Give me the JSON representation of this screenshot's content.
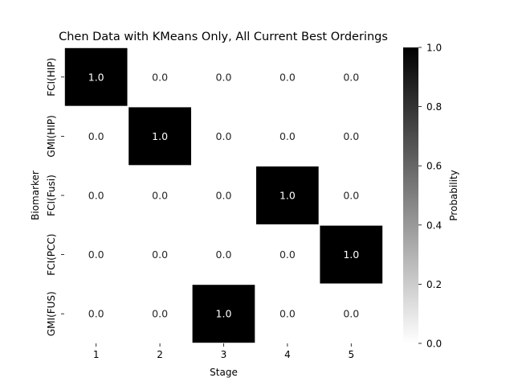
{
  "chart_data": {
    "type": "heatmap",
    "title": "Chen Data with KMeans Only, All Current Best Orderings",
    "xlabel": "Stage",
    "ylabel": "Biomarker",
    "x_categories": [
      "1",
      "2",
      "3",
      "4",
      "5"
    ],
    "y_categories": [
      "FCI(HIP)",
      "GMI(HIP)",
      "FCI(Fusi)",
      "FCI(PCC)",
      "GMI(FUS)"
    ],
    "values": [
      [
        1.0,
        0.0,
        0.0,
        0.0,
        0.0
      ],
      [
        0.0,
        1.0,
        0.0,
        0.0,
        0.0
      ],
      [
        0.0,
        0.0,
        0.0,
        1.0,
        0.0
      ],
      [
        0.0,
        0.0,
        0.0,
        0.0,
        1.0
      ],
      [
        0.0,
        0.0,
        1.0,
        0.0,
        0.0
      ]
    ],
    "cell_labels": [
      [
        "1.0",
        "0.0",
        "0.0",
        "0.0",
        "0.0"
      ],
      [
        "0.0",
        "1.0",
        "0.0",
        "0.0",
        "0.0"
      ],
      [
        "0.0",
        "0.0",
        "0.0",
        "1.0",
        "0.0"
      ],
      [
        "0.0",
        "0.0",
        "0.0",
        "0.0",
        "1.0"
      ],
      [
        "0.0",
        "0.0",
        "1.0",
        "0.0",
        "0.0"
      ]
    ],
    "colorbar": {
      "label": "Probability",
      "range": [
        0.0,
        1.0
      ],
      "ticks": [
        "0.0",
        "0.2",
        "0.4",
        "0.6",
        "0.8",
        "1.0"
      ],
      "colormap": "Greys",
      "low_color": "#ffffff",
      "high_color": "#000000"
    },
    "cell_border_color": "#ffffff",
    "grid": false
  }
}
